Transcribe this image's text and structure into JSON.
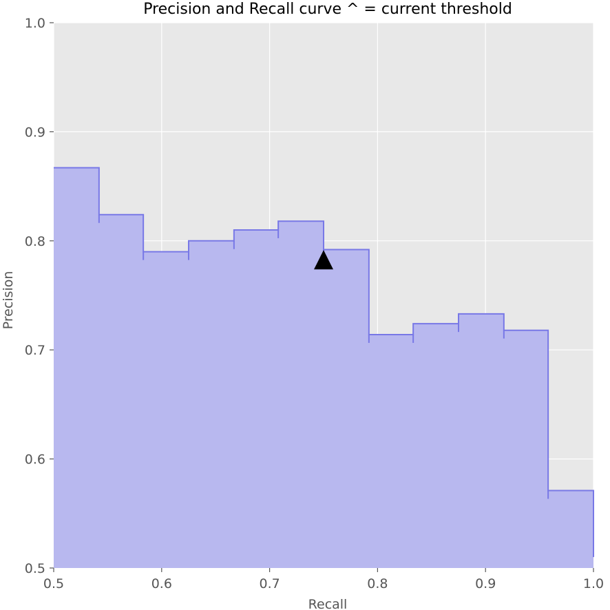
{
  "chart_data": {
    "type": "area",
    "title": "Precision and Recall curve ^ = current threshold",
    "xlabel": "Recall",
    "ylabel": "Precision",
    "xlim": [
      0.5,
      1.0
    ],
    "ylim": [
      0.5,
      1.0
    ],
    "grid": true,
    "step": "post",
    "xticks": [
      "0.5",
      "0.6",
      "0.7",
      "0.8",
      "0.9",
      "1.0"
    ],
    "yticks": [
      "0.5",
      "0.6",
      "0.7",
      "0.8",
      "0.9",
      "1.0"
    ],
    "series": [
      {
        "recall": [
          0.5,
          0.542,
          0.583,
          0.625,
          0.667,
          0.708,
          0.75,
          0.792,
          0.833,
          0.875,
          0.917,
          0.958,
          1.0
        ],
        "precision": [
          0.867,
          0.824,
          0.79,
          0.8,
          0.81,
          0.818,
          0.792,
          0.714,
          0.724,
          0.733,
          0.718,
          0.571,
          0.571
        ],
        "color": "#0000ff"
      }
    ],
    "marker": {
      "recall": 0.75,
      "precision": 0.782,
      "symbol": "^",
      "color": "#000000"
    },
    "colors": {
      "background": "#e8e8e8",
      "grid": "#ffffff",
      "fill": "#b8b8ef",
      "line": "#7878e6"
    }
  }
}
